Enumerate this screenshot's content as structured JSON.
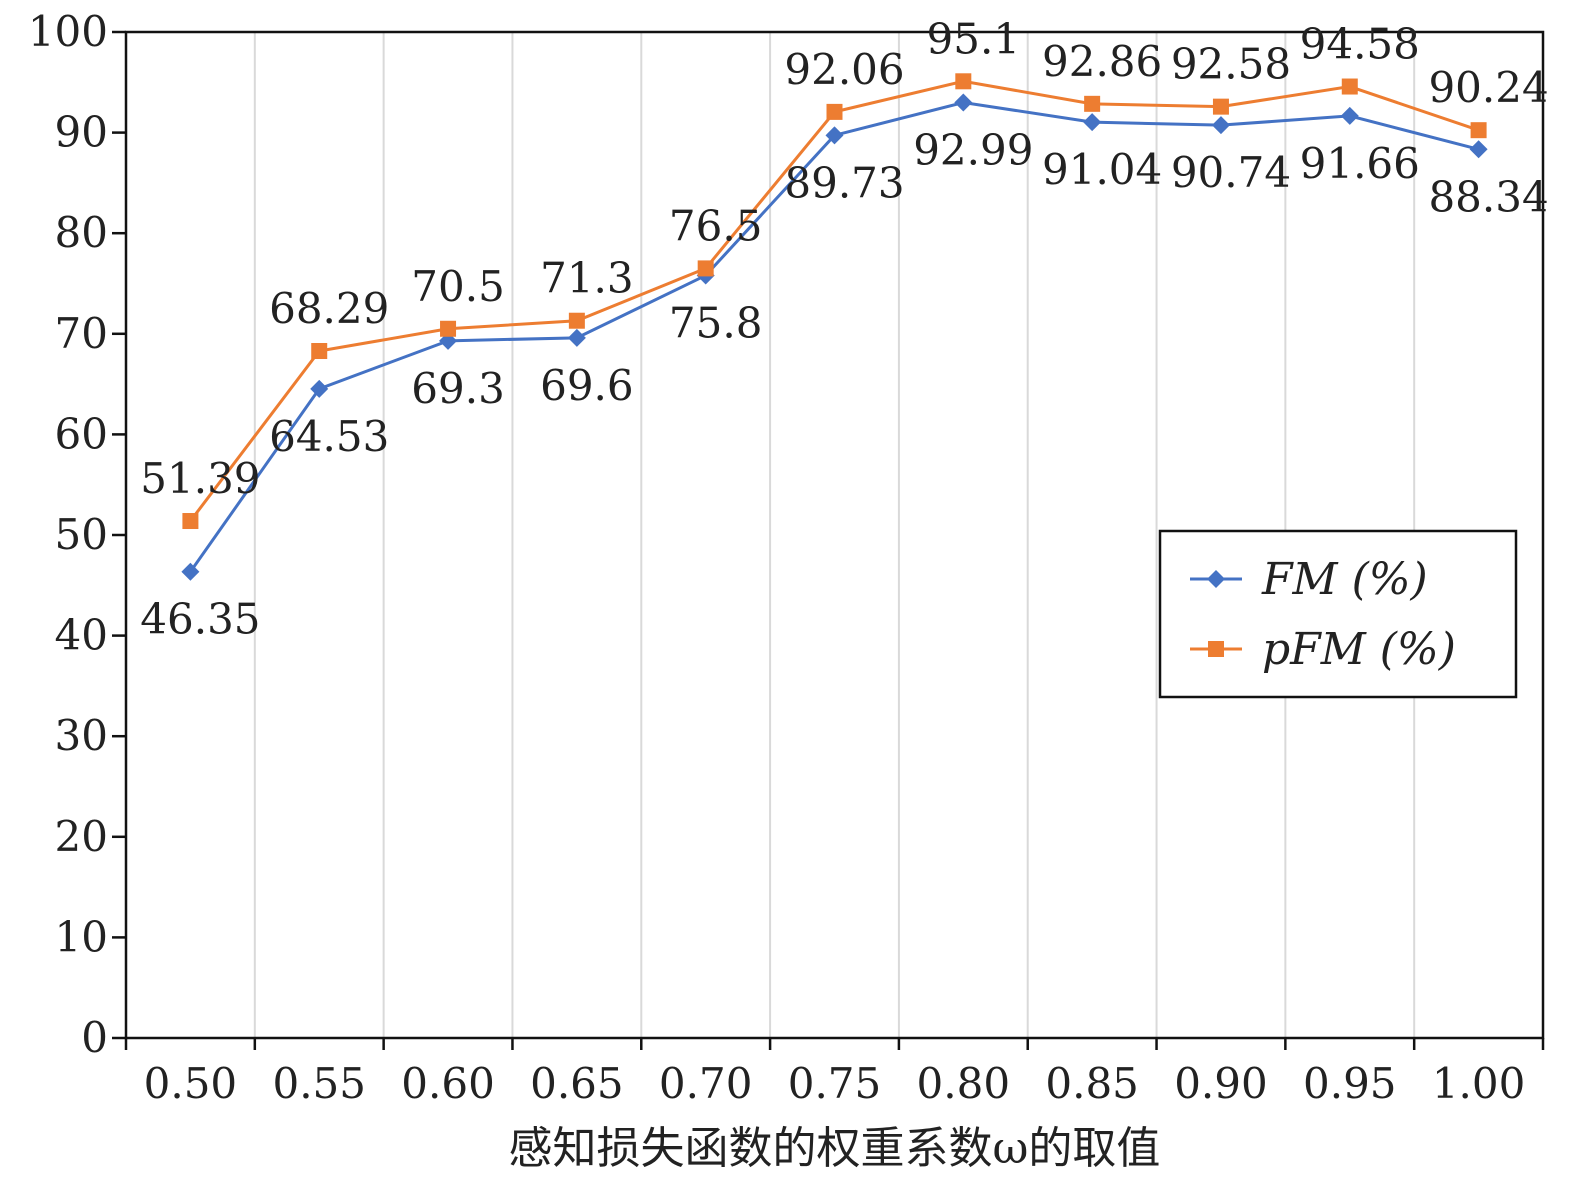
{
  "chart_data": {
    "type": "line",
    "xlabel": "感知损失函数的权重系数ω的取值",
    "ylabel": "",
    "ylim": [
      0,
      100
    ],
    "yticks": [
      0,
      10,
      20,
      30,
      40,
      50,
      60,
      70,
      80,
      90,
      100
    ],
    "ytick_labels": [
      "0",
      "10",
      "20",
      "30",
      "40",
      "50",
      "60",
      "70",
      "80",
      "90",
      "100"
    ],
    "categories": [
      "0.50",
      "0.55",
      "0.60",
      "0.65",
      "0.70",
      "0.75",
      "0.80",
      "0.85",
      "0.90",
      "0.95",
      "1.00"
    ],
    "grid": "vertical",
    "legend_position": "right",
    "highlight_color": "#e03535",
    "series": [
      {
        "name": "FM (%)",
        "color": "#4472c4",
        "marker": "diamond",
        "values": [
          46.35,
          64.53,
          69.3,
          69.6,
          75.8,
          89.73,
          92.99,
          91.04,
          90.74,
          91.66,
          88.34
        ],
        "labels": [
          "46.35",
          "64.53",
          "69.3",
          "69.6",
          "75.8",
          "89.73",
          "92.99",
          "91.04",
          "90.74",
          "91.66",
          "88.34"
        ],
        "highlight_index": 6
      },
      {
        "name": "pFM (%)",
        "color": "#ed7d31",
        "marker": "square",
        "values": [
          51.39,
          68.29,
          70.5,
          71.3,
          76.5,
          92.06,
          95.1,
          92.86,
          92.58,
          94.58,
          90.24
        ],
        "labels": [
          "51.39",
          "68.29",
          "70.5",
          "71.3",
          "76.5",
          "92.06",
          "95.1",
          "92.86",
          "92.58",
          "94.58",
          "90.24"
        ],
        "highlight_index": 6
      }
    ]
  }
}
